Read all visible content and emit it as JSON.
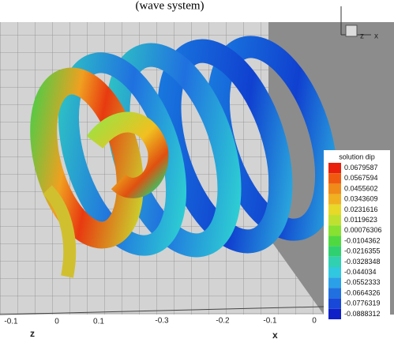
{
  "caption": "(wave system)",
  "triad": {
    "z": "z",
    "x": "x"
  },
  "axes": {
    "z_ticks": [
      "-0.1",
      "0",
      "0.1"
    ],
    "x_ticks": [
      "-0.3",
      "-0.2",
      "-0.1",
      "0"
    ],
    "z_label": "z",
    "x_label": "x"
  },
  "colorbar": {
    "title": "solution dip",
    "labels": [
      "0.0679587",
      "0.0567594",
      "0.0455602",
      "0.0343609",
      "0.0231616",
      "0.0119623",
      "0.00076306",
      "-0.0104362",
      "-0.0216355",
      "-0.0328348",
      "-0.044034",
      "-0.0552333",
      "-0.0664326",
      "-0.0776319",
      "-0.0888312"
    ]
  }
}
